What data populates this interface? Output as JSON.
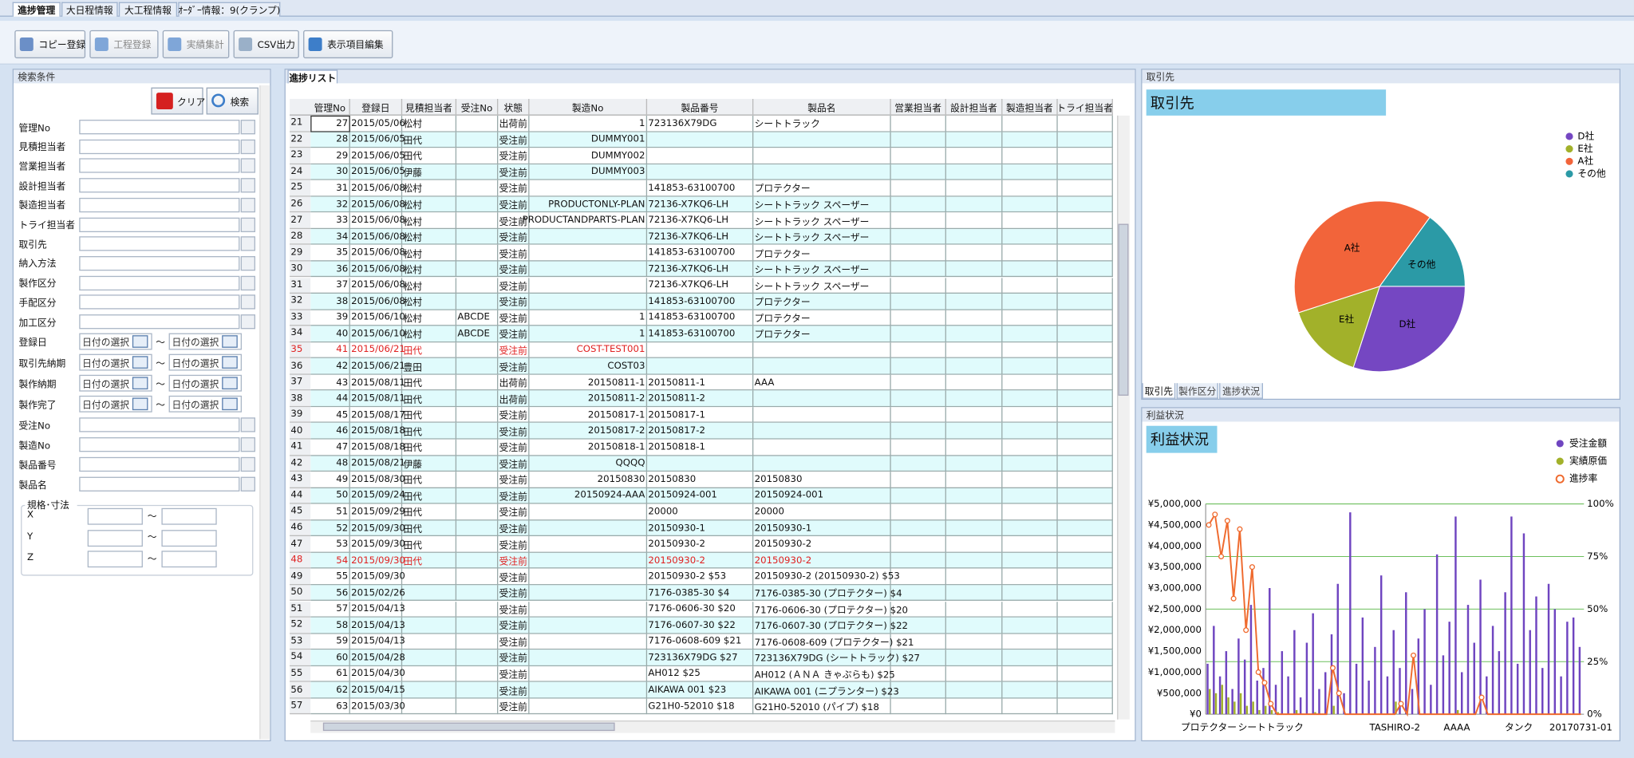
{
  "tabs": [
    "進捗管理",
    "大日程情報",
    "大工程情報",
    "ｵｰﾀﾞｰ情報：9(クランプ)"
  ],
  "toolbar": [
    {
      "label": "コピー登録"
    },
    {
      "label": "工程登録",
      "disabled": true
    },
    {
      "label": "実績集計",
      "disabled": true
    },
    {
      "label": "CSV出力"
    },
    {
      "label": "表示項目編集"
    }
  ],
  "search": {
    "title": "検索条件",
    "clear": "クリア",
    "search": "検索",
    "text_fields": [
      "管理No",
      "見積担当者",
      "営業担当者",
      "設計担当者",
      "製造担当者",
      "トライ担当者",
      "取引先",
      "納入方法",
      "製作区分",
      "手配区分",
      "加工区分"
    ],
    "date_fields": [
      "登録日",
      "取引先納期",
      "製作納期",
      "製作完了"
    ],
    "date_placeholder": "日付の選択",
    "range_sep": "～",
    "text_fields2": [
      "受注No",
      "製造No",
      "製品番号",
      "製品名"
    ],
    "dimension_group": "規格･寸法",
    "dimensions": [
      "X",
      "Y",
      "Z"
    ]
  },
  "list": {
    "title": "進捗リスト",
    "columns": [
      "管理No",
      "登録日",
      "見積担当者",
      "受注No",
      "状態",
      "製造No",
      "製品番号",
      "製品名",
      "営業担当者",
      "設計担当者",
      "製造担当者",
      "トライ担当者"
    ],
    "rows": [
      {
        "num": "21",
        "cells": [
          "27",
          "2015/05/06",
          "松村",
          null,
          "出荷前",
          "1",
          "723136X79DG",
          "シートトラック"
        ]
      },
      {
        "num": "22",
        "cells": [
          "28",
          "2015/06/05",
          "田代",
          null,
          "受注前",
          "DUMMY001",
          null,
          null
        ]
      },
      {
        "num": "23",
        "cells": [
          "29",
          "2015/06/05",
          "田代",
          null,
          "受注前",
          "DUMMY002",
          null,
          null
        ]
      },
      {
        "num": "24",
        "cells": [
          "30",
          "2015/06/05",
          "伊藤",
          null,
          "受注前",
          "DUMMY003",
          null,
          null
        ]
      },
      {
        "num": "25",
        "cells": [
          "31",
          "2015/06/08",
          "松村",
          null,
          "受注前",
          null,
          "141853-63100700",
          "プロテクター"
        ]
      },
      {
        "num": "26",
        "cells": [
          "32",
          "2015/06/08",
          "松村",
          null,
          "受注前",
          "PRODUCTONLY-PLAN",
          "72136-X7KQ6-LH",
          "シートトラック スペーザー"
        ]
      },
      {
        "num": "27",
        "cells": [
          "33",
          "2015/06/08",
          "松村",
          null,
          "受注前",
          "PRODUCTANDPARTS-PLAN",
          "72136-X7KQ6-LH",
          "シートトラック スペーザー"
        ]
      },
      {
        "num": "28",
        "cells": [
          "34",
          "2015/06/08",
          "松村",
          null,
          "受注前",
          null,
          "72136-X7KQ6-LH",
          "シートトラック スペーザー"
        ]
      },
      {
        "num": "29",
        "cells": [
          "35",
          "2015/06/08",
          "松村",
          null,
          "受注前",
          null,
          "141853-63100700",
          "プロテクター"
        ]
      },
      {
        "num": "30",
        "cells": [
          "36",
          "2015/06/08",
          "松村",
          null,
          "受注前",
          null,
          "72136-X7KQ6-LH",
          "シートトラック スペーザー"
        ]
      },
      {
        "num": "31",
        "cells": [
          "37",
          "2015/06/08",
          "松村",
          null,
          "受注前",
          null,
          "72136-X7KQ6-LH",
          "シートトラック スペーザー"
        ]
      },
      {
        "num": "32",
        "cells": [
          "38",
          "2015/06/08",
          "松村",
          null,
          "受注前",
          null,
          "141853-63100700",
          "プロテクター"
        ]
      },
      {
        "num": "33",
        "cells": [
          "39",
          "2015/06/10",
          "松村",
          "ABCDE",
          "受注前",
          "1",
          "141853-63100700",
          "プロテクター"
        ]
      },
      {
        "num": "34",
        "cells": [
          "40",
          "2015/06/10",
          "松村",
          "ABCDE",
          "受注前",
          "1",
          "141853-63100700",
          "プロテクター"
        ]
      },
      {
        "num": "35",
        "alert": true,
        "cells": [
          "41",
          "2015/06/21",
          "田代",
          null,
          "受注前",
          "COST-TEST001",
          null,
          null
        ]
      },
      {
        "num": "36",
        "cells": [
          "42",
          "2015/06/21",
          "豊田",
          null,
          "受注前",
          "COST03",
          null,
          null
        ]
      },
      {
        "num": "37",
        "cells": [
          "43",
          "2015/08/11",
          "田代",
          null,
          "出荷前",
          "20150811-1",
          "20150811-1",
          "AAA"
        ]
      },
      {
        "num": "38",
        "cells": [
          "44",
          "2015/08/11",
          "田代",
          null,
          "出荷前",
          "20150811-2",
          "20150811-2",
          null
        ]
      },
      {
        "num": "39",
        "cells": [
          "45",
          "2015/08/17",
          "田代",
          null,
          "受注前",
          "20150817-1",
          "20150817-1",
          null
        ]
      },
      {
        "num": "40",
        "cells": [
          "46",
          "2015/08/18",
          "田代",
          null,
          "受注前",
          "20150817-2",
          "20150817-2",
          null
        ]
      },
      {
        "num": "41",
        "cells": [
          "47",
          "2015/08/18",
          "田代",
          null,
          "受注前",
          "20150818-1",
          "20150818-1",
          null
        ]
      },
      {
        "num": "42",
        "cells": [
          "48",
          "2015/08/21",
          "伊藤",
          null,
          "受注前",
          "QQQQ",
          null,
          null
        ]
      },
      {
        "num": "43",
        "cells": [
          "49",
          "2015/08/30",
          "田代",
          null,
          "受注前",
          "20150830",
          "20150830",
          "20150830"
        ]
      },
      {
        "num": "44",
        "cells": [
          "50",
          "2015/09/24",
          "田代",
          null,
          "受注前",
          "20150924-AAA",
          "20150924-001",
          "20150924-001"
        ]
      },
      {
        "num": "45",
        "cells": [
          "51",
          "2015/09/29",
          "田代",
          null,
          "受注前",
          null,
          "20000",
          "20000"
        ]
      },
      {
        "num": "46",
        "cells": [
          "52",
          "2015/09/30",
          "田代",
          null,
          "受注前",
          null,
          "20150930-1",
          "20150930-1"
        ]
      },
      {
        "num": "47",
        "cells": [
          "53",
          "2015/09/30",
          "田代",
          null,
          "受注前",
          null,
          "20150930-2",
          "20150930-2"
        ]
      },
      {
        "num": "48",
        "alert": true,
        "cells": [
          "54",
          "2015/09/30",
          "田代",
          null,
          "受注前",
          null,
          "20150930-2",
          "20150930-2"
        ]
      },
      {
        "num": "49",
        "cells": [
          "55",
          "2015/09/30",
          null,
          null,
          "受注前",
          null,
          "20150930-2 $53",
          "20150930-2 (20150930-2) $53"
        ]
      },
      {
        "num": "50",
        "cells": [
          "56",
          "2015/02/26",
          null,
          null,
          "受注前",
          null,
          "7176-0385-30 $4",
          "7176-0385-30 (プロテクター) $4"
        ]
      },
      {
        "num": "51",
        "cells": [
          "57",
          "2015/04/13",
          null,
          null,
          "受注前",
          null,
          "7176-0606-30 $20",
          "7176-0606-30 (プロテクター) $20"
        ]
      },
      {
        "num": "52",
        "cells": [
          "58",
          "2015/04/13",
          null,
          null,
          "受注前",
          null,
          "7176-0607-30 $22",
          "7176-0607-30 (プロテクター) $22"
        ]
      },
      {
        "num": "53",
        "cells": [
          "59",
          "2015/04/13",
          null,
          null,
          "受注前",
          null,
          "7176-0608-609 $21",
          "7176-0608-609 (プロテクター) $21"
        ]
      },
      {
        "num": "54",
        "cells": [
          "60",
          "2015/04/28",
          null,
          null,
          "受注前",
          null,
          "723136X79DG $27",
          "723136X79DG (シートトラック) $27"
        ]
      },
      {
        "num": "55",
        "cells": [
          "61",
          "2015/04/30",
          null,
          null,
          "受注前",
          null,
          "AH012 $25",
          "AH012 (ＡＮＡ きゃぷらも) $25"
        ]
      },
      {
        "num": "56",
        "cells": [
          "62",
          "2015/04/15",
          null,
          null,
          "受注前",
          null,
          "AIKAWA 001 $23",
          "AIKAWA 001 (ニプランター) $23"
        ]
      },
      {
        "num": "57",
        "cells": [
          "63",
          "2015/03/30",
          null,
          null,
          "受注前",
          null,
          "G21H0-52010 $18",
          "G21H0-52010 (パイプ) $18"
        ]
      }
    ]
  },
  "pie_panel": {
    "title": "取引先",
    "tabs": [
      "取引先",
      "製作区分",
      "進捗状況"
    ]
  },
  "profit_panel": {
    "title": "利益状況"
  },
  "chart_data": [
    {
      "type": "pie",
      "title": "取引先",
      "categories": [
        "D社",
        "E社",
        "A社",
        "その他"
      ],
      "values": [
        30,
        15,
        40,
        15
      ],
      "colors": [
        "#7547c2",
        "#a2b12a",
        "#f2643a",
        "#2b9aa6"
      ],
      "legend": "right"
    },
    {
      "type": "bar_line",
      "title": "利益状況",
      "categories": [
        "プロテクター",
        null,
        null,
        null,
        null,
        null,
        null,
        null,
        null,
        null,
        "シートトラック",
        null,
        null,
        null,
        null,
        null,
        null,
        null,
        null,
        null,
        null,
        null,
        null,
        null,
        null,
        null,
        null,
        null,
        null,
        null,
        "TASHIRO-2",
        null,
        null,
        null,
        null,
        null,
        null,
        null,
        null,
        null,
        "AAAA",
        null,
        null,
        null,
        null,
        null,
        null,
        null,
        null,
        null,
        "タンク",
        null,
        null,
        null,
        null,
        null,
        null,
        null,
        null,
        null,
        "20170731-01"
      ],
      "series": [
        {
          "name": "受注金額",
          "color": "#6f45c0",
          "values": [
            1200000,
            2100000,
            900000,
            1500000,
            600000,
            1800000,
            1300000,
            2600000,
            800000,
            1100000,
            3000000,
            700000,
            1500000,
            900000,
            2000000,
            400000,
            1700000,
            2400000,
            600000,
            1000000,
            1900000,
            3100000,
            500000,
            4800000,
            1200000,
            2300000,
            800000,
            1600000,
            3300000,
            900000,
            2000000,
            1100000,
            2900000,
            600000,
            1800000,
            2500000,
            700000,
            3800000,
            1400000,
            2200000,
            4700000,
            1000000,
            2600000,
            1700000,
            3200000,
            900000,
            2100000,
            1500000,
            2900000,
            4700000,
            1200000,
            4300000,
            2000000,
            2800000,
            1100000,
            3100000,
            2500000,
            900000,
            2200000,
            2300000,
            1600000
          ]
        },
        {
          "name": "実績原価",
          "color": "#a2b12a",
          "values": [
            600000,
            500000,
            700000,
            400000,
            300000,
            500000,
            200000,
            300000,
            100000,
            200000,
            100000,
            50000,
            0,
            0,
            100000,
            0,
            0,
            50000,
            0,
            0,
            200000,
            0,
            0,
            0,
            0,
            0,
            0,
            0,
            0,
            0,
            300000,
            0,
            0,
            0,
            0,
            0,
            0,
            0,
            0,
            0,
            100000,
            0,
            0,
            0,
            0,
            0,
            0,
            0,
            0,
            0,
            0,
            0,
            0,
            0,
            0,
            0,
            0,
            0,
            0,
            0,
            0
          ]
        },
        {
          "name": "進捗率",
          "color": "#ef6a2e",
          "axis": "y2",
          "values": [
            90,
            95,
            75,
            92,
            55,
            88,
            40,
            70,
            20,
            15,
            5,
            0,
            0,
            0,
            0,
            0,
            0,
            0,
            0,
            0,
            22,
            10,
            0,
            0,
            0,
            0,
            0,
            0,
            0,
            0,
            0,
            5,
            0,
            28,
            0,
            0,
            0,
            0,
            0,
            0,
            0,
            0,
            0,
            0,
            8,
            0,
            0,
            0,
            0,
            0,
            0,
            0,
            0,
            0,
            0,
            0,
            0,
            0,
            0,
            0,
            0
          ]
        }
      ],
      "ylim": [
        0,
        5000000
      ],
      "yticks": [
        {
          "value": 0,
          "label": "¥0"
        },
        {
          "value": 500000,
          "label": "¥500,000"
        },
        {
          "value": 1000000,
          "label": "¥1,000,000"
        },
        {
          "value": 1500000,
          "label": "¥1,500,000"
        },
        {
          "value": 2000000,
          "label": "¥2,000,000"
        },
        {
          "value": 2500000,
          "label": "¥2,500,000"
        },
        {
          "value": 3000000,
          "label": "¥3,000,000"
        },
        {
          "value": 3500000,
          "label": "¥3,500,000"
        },
        {
          "value": 4000000,
          "label": "¥4,000,000"
        },
        {
          "value": 4500000,
          "label": "¥4,500,000"
        },
        {
          "value": 5000000,
          "label": "¥5,000,000"
        }
      ],
      "y2lim": [
        0,
        100
      ],
      "y2ticks": [
        {
          "value": 0,
          "label": "0%"
        },
        {
          "value": 25,
          "label": "25%"
        },
        {
          "value": 50,
          "label": "50%"
        },
        {
          "value": 75,
          "label": "75%"
        },
        {
          "value": 100,
          "label": "100%"
        }
      ],
      "grid": "y2",
      "legend": "top-right"
    }
  ]
}
